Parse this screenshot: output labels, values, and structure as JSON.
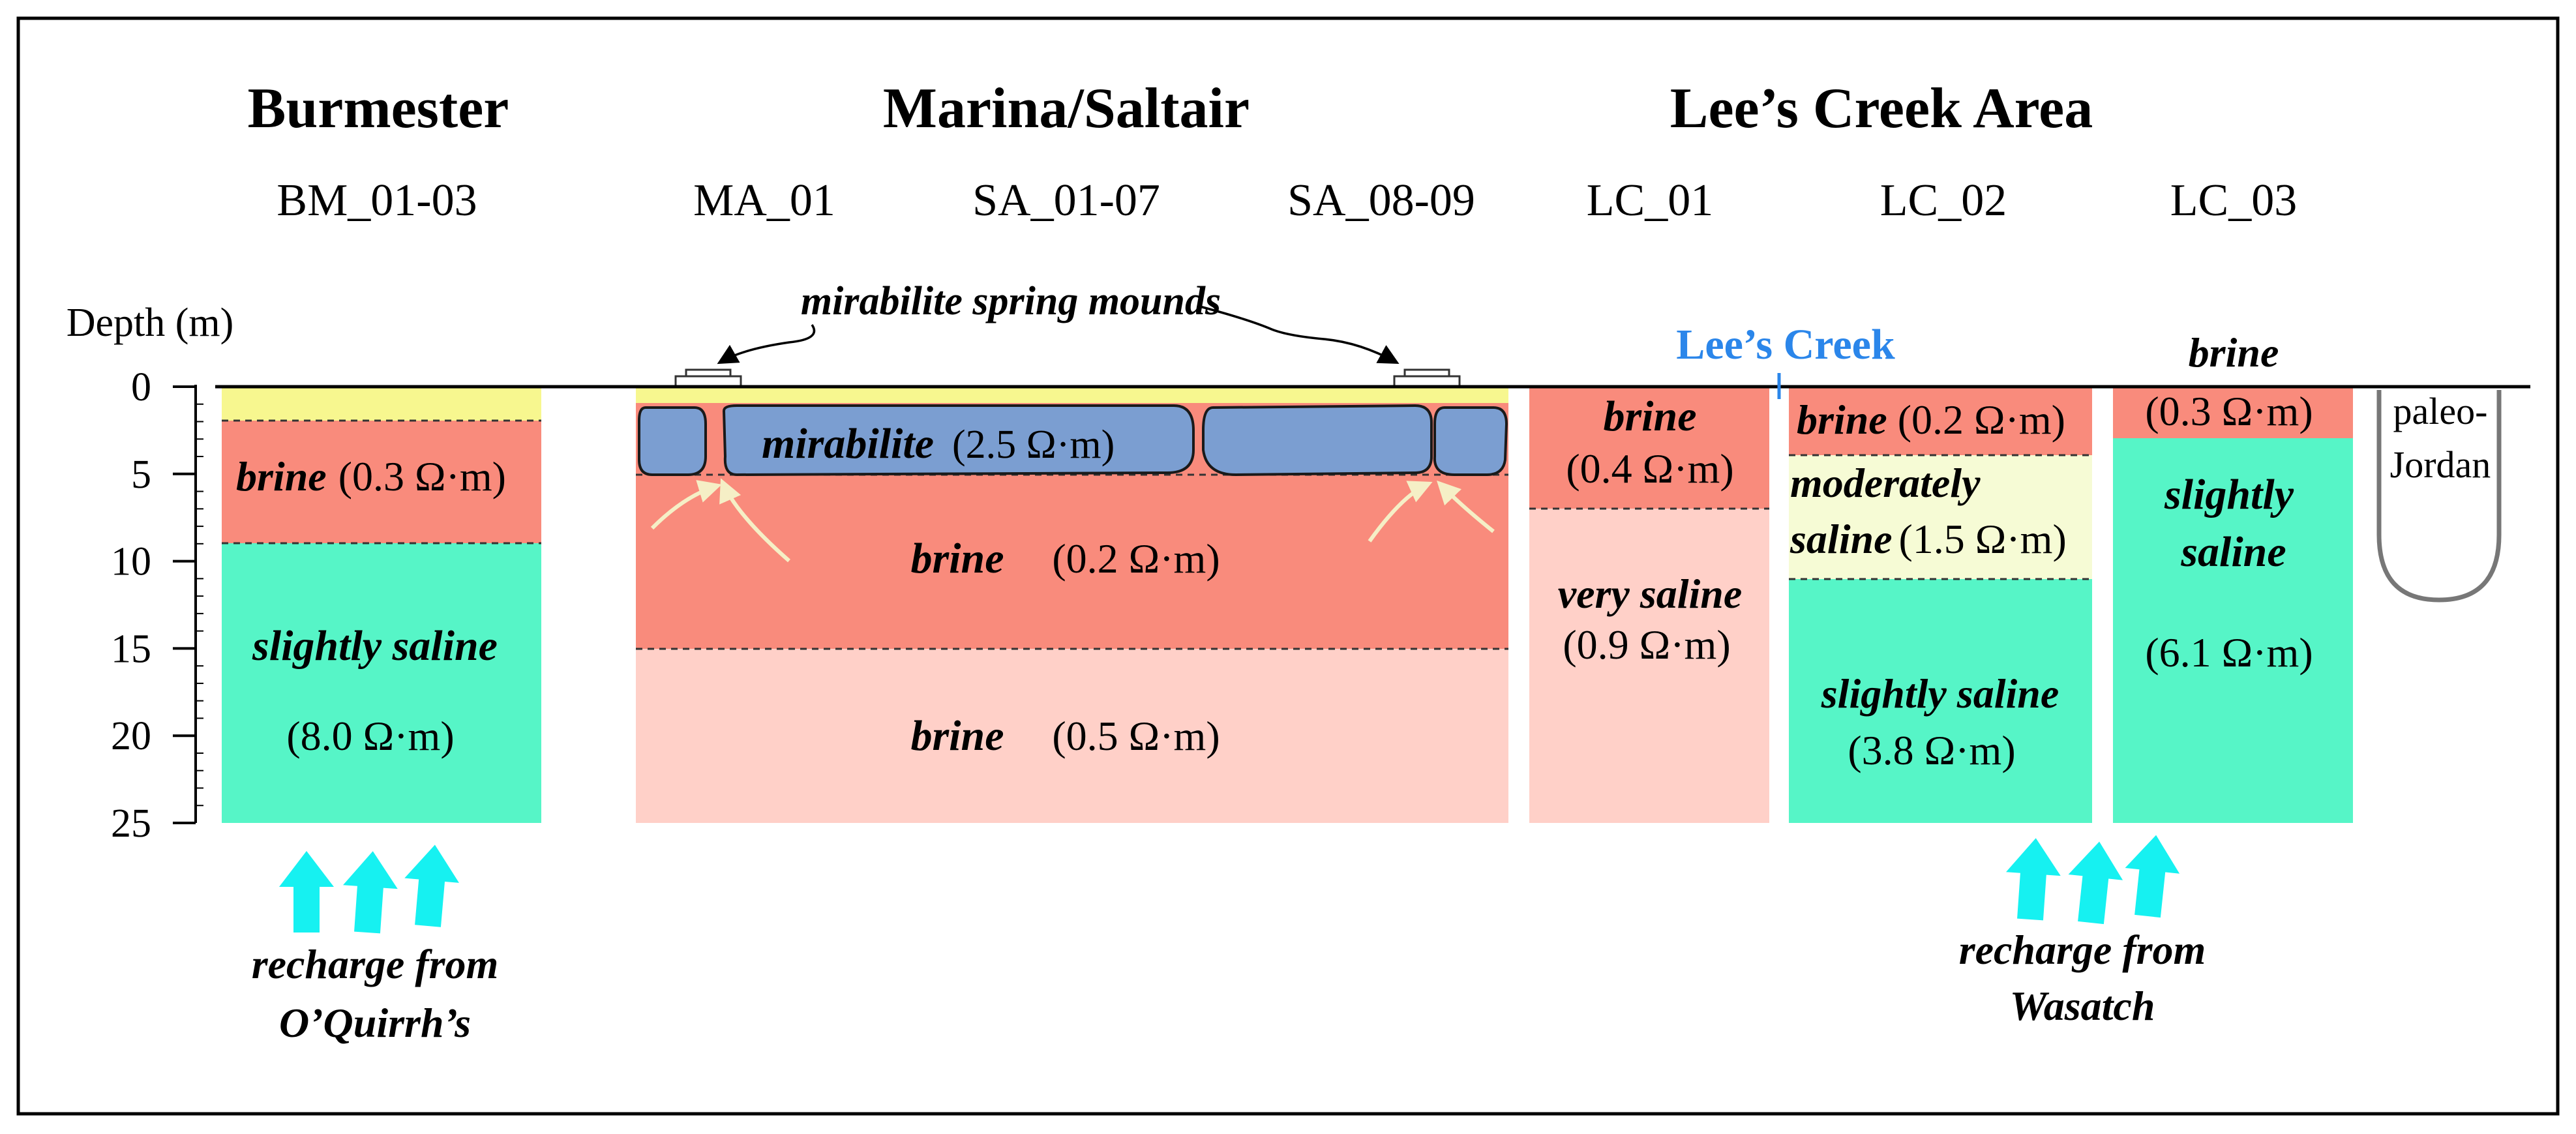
{
  "headers": {
    "burmester": "Burmester",
    "marina": "Marina/Saltair",
    "lees_creek_area": "Lee’s Creek Area"
  },
  "wells": {
    "bm": "BM_01-03",
    "ma": "MA_01",
    "sa1": "SA_01-07",
    "sa2": "SA_08-09",
    "lc1": "LC_01",
    "lc2": "LC_02",
    "lc3": "LC_03"
  },
  "axis": {
    "label": "Depth (m)",
    "ticks": [
      "0",
      "5",
      "10",
      "15",
      "20",
      "25"
    ],
    "range_m": [
      0,
      25
    ]
  },
  "annotations": {
    "spring_mounds": "mirabilite spring mounds",
    "lees_creek": "Lee’s Creek",
    "paleo_1": "paleo-",
    "paleo_2": "Jordan",
    "brine_top": "brine"
  },
  "burmester": {
    "brine_name": "brine",
    "brine_res": "(0.3 Ω·m)",
    "ss_name": "slightly saline",
    "ss_res": "(8.0 Ω·m)",
    "recharge_1": "recharge from",
    "recharge_2": "O’Quirrh’s"
  },
  "marina": {
    "mirabilite_name": "mirabilite",
    "mirabilite_res": "(2.5 Ω·m)",
    "brine1_name": "brine",
    "brine1_res": "(0.2 Ω·m)",
    "brine2_name": "brine",
    "brine2_res": "(0.5 Ω·m)"
  },
  "lc01": {
    "brine_name": "brine",
    "brine_res": "(0.4 Ω·m)",
    "vs_name": "very saline",
    "vs_res": "(0.9 Ω·m)"
  },
  "lc02": {
    "brine_name": "brine",
    "brine_res": "(0.2 Ω·m)",
    "mod_1": "moderately",
    "mod_2": "saline",
    "mod_res": "(1.5 Ω·m)",
    "ss_name": "slightly saline",
    "ss_res": "(3.8 Ω·m)",
    "recharge_1": "recharge from",
    "recharge_2": "Wasatch"
  },
  "lc03": {
    "brine_res": "(0.3 Ω·m)",
    "ss_1": "slightly",
    "ss_2": "saline",
    "ss_res": "(6.1 Ω·m)"
  },
  "colors": {
    "brine_strong": "#f98b7c",
    "brine_light": "#ffd0c8",
    "slightly_saline": "#56f5c7",
    "surface_yellow": "#f7f78f",
    "moderately_saline": "#f6fbd5",
    "mirabilite": "#7b9ed1",
    "recharge_arrow": "#16f1f1",
    "lees_creek_blue": "#2b86ea"
  }
}
